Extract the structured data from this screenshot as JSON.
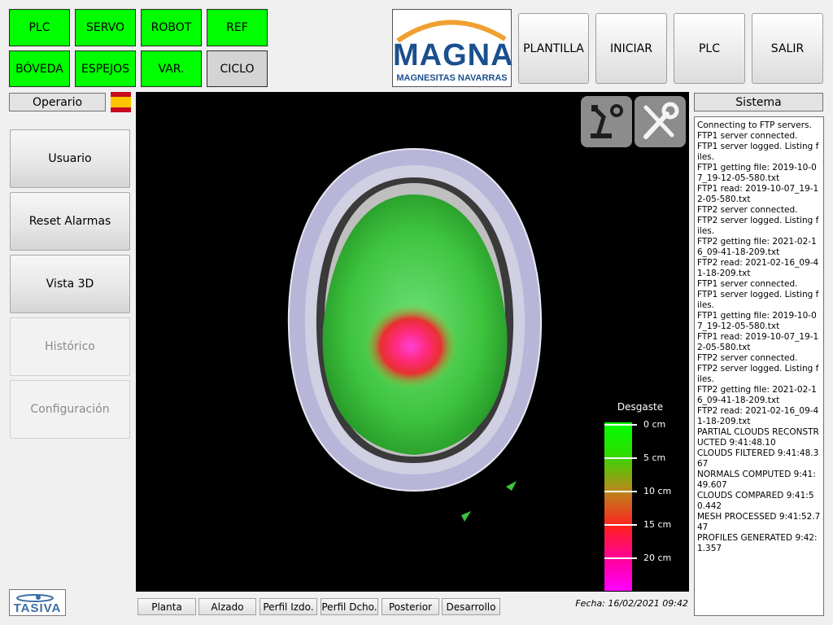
{
  "status_buttons": [
    "PLC",
    "SERVO",
    "ROBOT",
    "REF",
    "BÓVEDA",
    "ESPEJOS",
    "VAR.",
    "CICLO"
  ],
  "logo": {
    "brand": "MAGNA",
    "subtitle": "MAGNESITAS NAVARRAS"
  },
  "toolbar": [
    "PLANTILLA",
    "INICIAR",
    "PLC",
    "SALIR"
  ],
  "operator_label": "Operario",
  "system_label": "Sistema",
  "side_menu": [
    {
      "label": "Usuario",
      "enabled": true
    },
    {
      "label": "Reset Alarmas",
      "enabled": true
    },
    {
      "label": "Vista 3D",
      "enabled": true
    },
    {
      "label": "Histórico",
      "enabled": false
    },
    {
      "label": "Configuración",
      "enabled": false
    }
  ],
  "view_buttons": [
    "Planta",
    "Alzado",
    "Perfil Izdo.",
    "Perfil Dcho.",
    "Posterior",
    "Desarrollo"
  ],
  "date_text": "Fecha: 16/02/2021 09:42",
  "company_logo": "TASIVA",
  "legend": {
    "title": "Desgaste",
    "labels": [
      "0 cm",
      "5 cm",
      "10 cm",
      "15 cm",
      "20 cm"
    ]
  },
  "log_lines": [
    "Connecting to FTP servers.",
    "FTP1 server connected.",
    "FTP1 server logged. Listing files.",
    "FTP1 getting file: 2019-10-07_19-12-05-580.txt",
    "FTP1 read: 2019-10-07_19-12-05-580.txt",
    "FTP2 server connected.",
    "FTP2 server logged. Listing files.",
    "FTP2 getting file: 2021-02-16_09-41-18-209.txt",
    "FTP2 read: 2021-02-16_09-41-18-209.txt",
    "FTP1 server connected.",
    "FTP1 server logged. Listing files.",
    "FTP1 getting file: 2019-10-07_19-12-05-580.txt",
    "FTP1 read: 2019-10-07_19-12-05-580.txt",
    "FTP2 server connected.",
    "FTP2 server logged. Listing files.",
    "FTP2 getting file: 2021-02-16_09-41-18-209.txt",
    "FTP2 read: 2021-02-16_09-41-18-209.txt",
    "PARTIAL CLOUDS RECONSTRUCTED 9:41:48.10",
    "CLOUDS FILTERED 9:41:48.367",
    "NORMALS COMPUTED 9:41:49.607",
    "CLOUDS COMPARED 9:41:50.442",
    "MESH PROCESSED 9:41:52.747",
    "PROFILES GENERATED 9:42:1.357"
  ],
  "icons": [
    "robot-settings-icon",
    "tools-icon",
    "spain-flag-icon"
  ]
}
